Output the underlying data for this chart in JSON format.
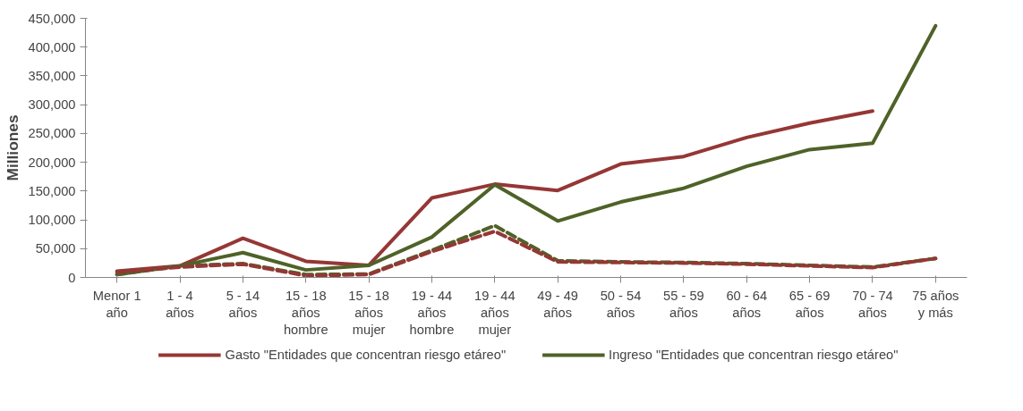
{
  "chart_data": {
    "type": "line",
    "ylabel": "Milliones",
    "categories": [
      "Menor 1\naño",
      "1 - 4\naños",
      "5 - 14\naños",
      "15 - 18\naños\nhombre",
      "15 - 18\naños\nmujer",
      "19 - 44\naños\nhombre",
      "19 - 44\naños\nmujer",
      "49 - 49\naños",
      "50 - 54\naños",
      "55 - 59\naños",
      "60 - 64\naños",
      "65 - 69\naños",
      "70 - 74\naños",
      "75 años\ny más"
    ],
    "series": [
      {
        "name": "Gasto \"Entidades que concentran riesgo etáreo\"",
        "color": "#953735",
        "line_style": "solid",
        "values": [
          11000,
          20000,
          68000,
          28000,
          21000,
          138000,
          162000,
          151000,
          197000,
          210000,
          243000,
          268000,
          289000,
          null
        ]
      },
      {
        "name": "Ingreso \"Entidades que concentran riesgo etáreo\"",
        "color": "#4f6228",
        "line_style": "solid",
        "values": [
          5000,
          20000,
          43000,
          13000,
          21000,
          70000,
          161000,
          98000,
          131000,
          155000,
          193000,
          222000,
          233000,
          437000
        ]
      },
      {
        "color": "#4f6228",
        "line_style": "dashed",
        "values": [
          5000,
          20000,
          24000,
          5000,
          6000,
          47000,
          90000,
          29000,
          27000,
          26000,
          24000,
          21000,
          18000,
          33000
        ]
      },
      {
        "color": "#953735",
        "line_style": "dashed",
        "values": [
          9000,
          18000,
          23000,
          3000,
          5000,
          45000,
          80000,
          27000,
          26000,
          25000,
          23000,
          20000,
          17000,
          33000
        ]
      }
    ],
    "ylim": [
      0,
      450000
    ],
    "yticks": [
      {
        "value": 0,
        "label": "0"
      },
      {
        "value": 50000,
        "label": "50,000"
      },
      {
        "value": 100000,
        "label": "100,000"
      },
      {
        "value": 150000,
        "label": "150,000"
      },
      {
        "value": 200000,
        "label": "200,000"
      },
      {
        "value": 250000,
        "label": "250,000"
      },
      {
        "value": 300000,
        "label": "300,000"
      },
      {
        "value": 350000,
        "label": "350,000"
      },
      {
        "value": 400000,
        "label": "400,000"
      },
      {
        "value": 450000,
        "label": "450,000"
      }
    ],
    "grid": false,
    "legend": "bottom",
    "marker": "none"
  }
}
